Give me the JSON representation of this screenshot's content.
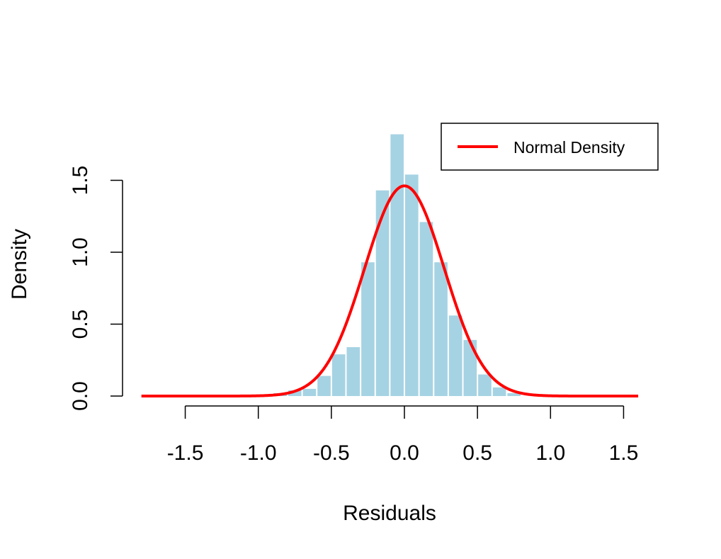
{
  "chart_data": {
    "type": "bar",
    "title": "",
    "xlabel": "Residuals",
    "ylabel": "Density",
    "xlim": [
      -1.85,
      1.65
    ],
    "ylim": [
      0,
      1.85
    ],
    "x_ticks": [
      -1.5,
      -1.0,
      -0.5,
      0.0,
      0.5,
      1.0,
      1.5
    ],
    "x_tick_labels": [
      "-1.5",
      "-1.0",
      "-0.5",
      "0.0",
      "0.5",
      "1.0",
      "1.5"
    ],
    "y_ticks": [
      0.0,
      0.5,
      1.0,
      1.5
    ],
    "y_tick_labels": [
      "0.0",
      "0.5",
      "1.0",
      "1.5"
    ],
    "grid": false,
    "legend": {
      "position": "top-right",
      "entries": [
        {
          "label": "Normal Density",
          "color": "#ff0000"
        }
      ]
    },
    "histogram": {
      "bin_width": 0.1,
      "bins": [
        {
          "x0": -1.0,
          "x1": -0.9,
          "density": 0.01
        },
        {
          "x0": -0.9,
          "x1": -0.8,
          "density": 0.02
        },
        {
          "x0": -0.8,
          "x1": -0.7,
          "density": 0.04
        },
        {
          "x0": -0.7,
          "x1": -0.6,
          "density": 0.05
        },
        {
          "x0": -0.6,
          "x1": -0.5,
          "density": 0.14
        },
        {
          "x0": -0.5,
          "x1": -0.4,
          "density": 0.29
        },
        {
          "x0": -0.4,
          "x1": -0.3,
          "density": 0.34
        },
        {
          "x0": -0.3,
          "x1": -0.2,
          "density": 0.93
        },
        {
          "x0": -0.2,
          "x1": -0.1,
          "density": 1.43
        },
        {
          "x0": -0.1,
          "x1": 0.0,
          "density": 1.82
        },
        {
          "x0": 0.0,
          "x1": 0.1,
          "density": 1.54
        },
        {
          "x0": 0.1,
          "x1": 0.2,
          "density": 1.21
        },
        {
          "x0": 0.2,
          "x1": 0.3,
          "density": 0.93
        },
        {
          "x0": 0.3,
          "x1": 0.4,
          "density": 0.56
        },
        {
          "x0": 0.4,
          "x1": 0.5,
          "density": 0.39
        },
        {
          "x0": 0.5,
          "x1": 0.6,
          "density": 0.15
        },
        {
          "x0": 0.6,
          "x1": 0.7,
          "density": 0.06
        },
        {
          "x0": 0.7,
          "x1": 0.8,
          "density": 0.02
        }
      ],
      "color": "#a6d3e3"
    },
    "series": [
      {
        "name": "Normal Density",
        "type": "line",
        "color": "#ff0000",
        "mean": 0.0,
        "sd": 0.273,
        "x_range": [
          -1.8,
          1.6
        ]
      }
    ]
  }
}
